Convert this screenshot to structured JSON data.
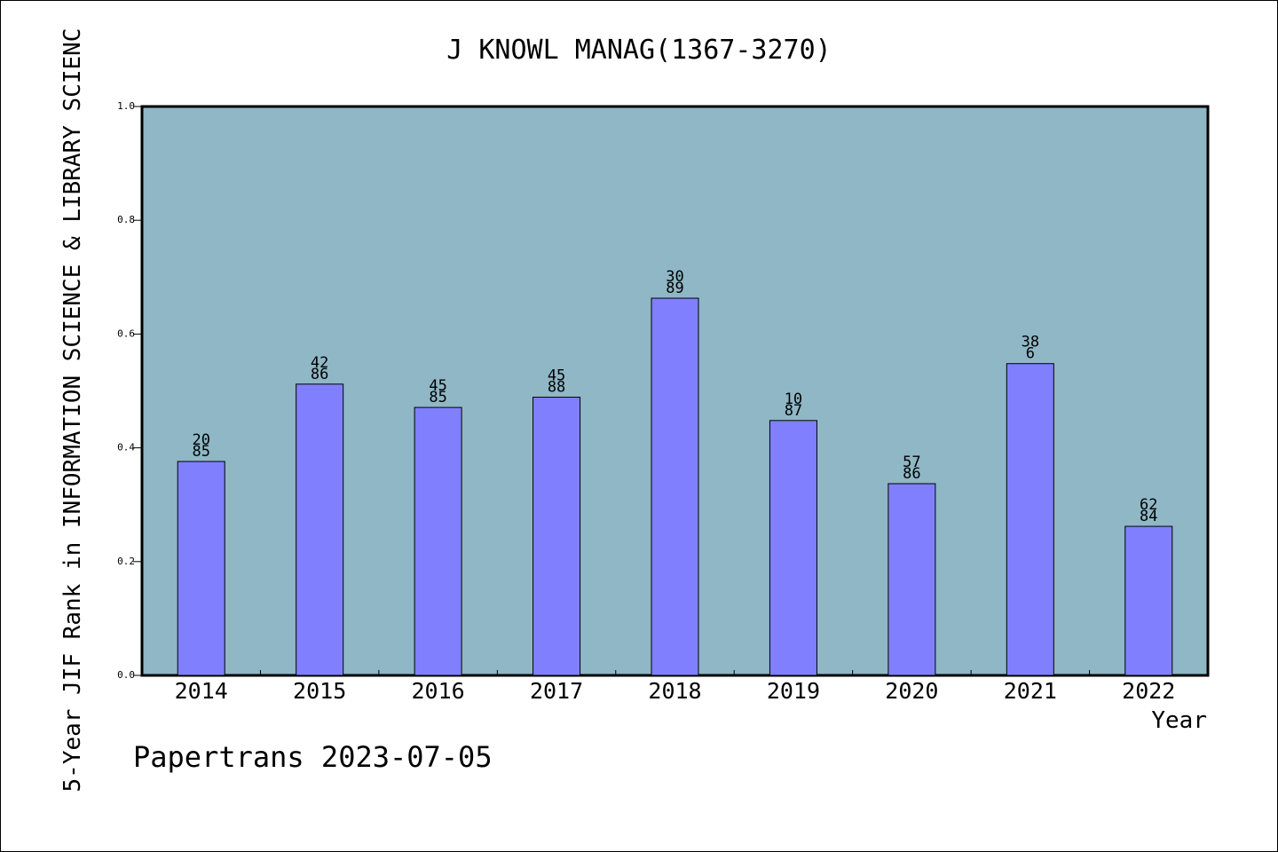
{
  "footer": {
    "credit": "Papertrans 2023-07-05"
  },
  "colors": {
    "plot_background": "#8fb7c6",
    "bar_fill": "#8080ff",
    "bar_stroke": "#000000",
    "frame": "#000000"
  },
  "chart_data": {
    "type": "bar",
    "title": "J KNOWL MANAG(1367-3270)",
    "xlabel": "Year",
    "ylabel": "5-Year JIF Rank in INFORMATION SCIENCE & LIBRARY SCIENC",
    "ylim": [
      0,
      1.0
    ],
    "yticks": [
      "0.0",
      "0.2",
      "0.4",
      "0.6",
      "0.8",
      "1.0"
    ],
    "grid": false,
    "legend": "none",
    "categories": [
      "2014",
      "2015",
      "2016",
      "2017",
      "2018",
      "2019",
      "2020",
      "2021",
      "2022"
    ],
    "values": [
      0.376,
      0.512,
      0.471,
      0.489,
      0.663,
      0.448,
      0.337,
      0.548,
      0.262
    ],
    "bar_labels": [
      [
        "20",
        "85"
      ],
      [
        "42",
        "86"
      ],
      [
        "45",
        "85"
      ],
      [
        "45",
        "88"
      ],
      [
        "30",
        "89"
      ],
      [
        "10",
        "87"
      ],
      [
        "57",
        "86"
      ],
      [
        "38",
        "6"
      ],
      [
        "62",
        "84"
      ]
    ]
  }
}
